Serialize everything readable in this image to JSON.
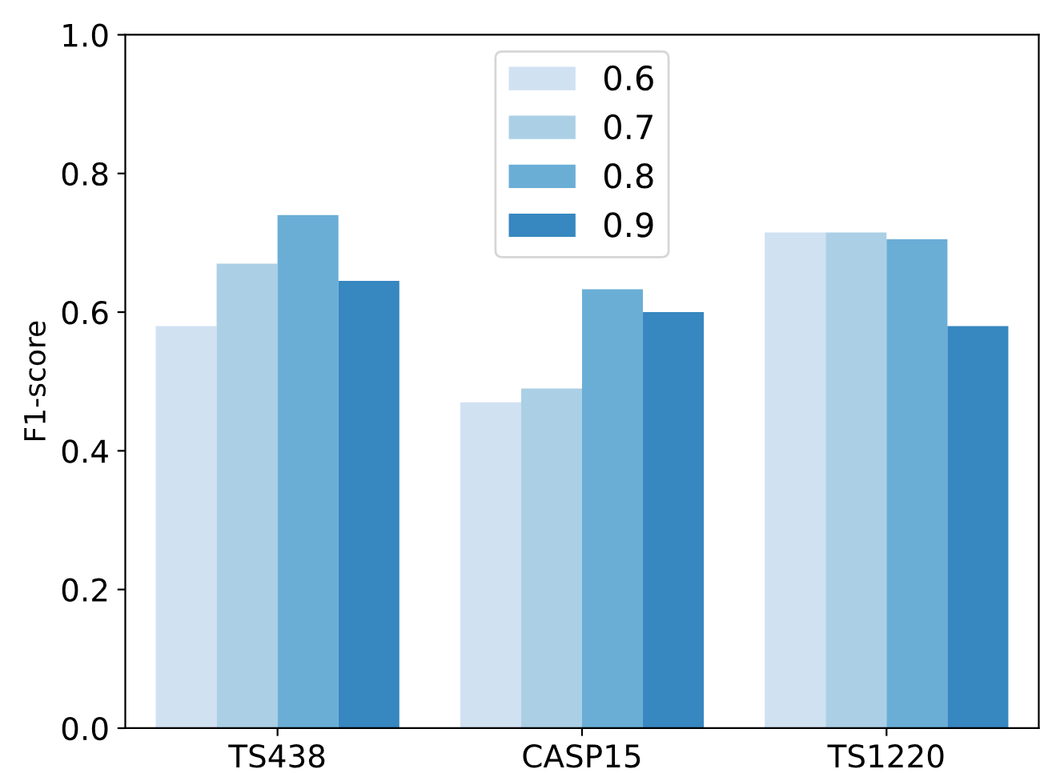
{
  "chart_data": {
    "type": "bar",
    "ylabel": "F1-score",
    "categories": [
      "TS438",
      "CASP15",
      "TS1220"
    ],
    "series": [
      {
        "name": "0.6",
        "color": "#d0e1f2",
        "values": [
          0.58,
          0.47,
          0.715
        ]
      },
      {
        "name": "0.7",
        "color": "#abd0e6",
        "values": [
          0.67,
          0.49,
          0.715
        ]
      },
      {
        "name": "0.8",
        "color": "#6aaed6",
        "values": [
          0.74,
          0.633,
          0.705
        ]
      },
      {
        "name": "0.9",
        "color": "#3787c0",
        "values": [
          0.645,
          0.6,
          0.58
        ]
      }
    ],
    "ylim": [
      0,
      1.0
    ],
    "yticks": [
      {
        "value": 0,
        "label": "0.0"
      },
      {
        "value": 0.2,
        "label": "0.2"
      },
      {
        "value": 0.4,
        "label": "0.4"
      },
      {
        "value": 0.6,
        "label": "0.6"
      },
      {
        "value": 0.8,
        "label": "0.8"
      },
      {
        "value": 1.0,
        "label": "1.0"
      }
    ],
    "grid": false,
    "legend": "top"
  }
}
